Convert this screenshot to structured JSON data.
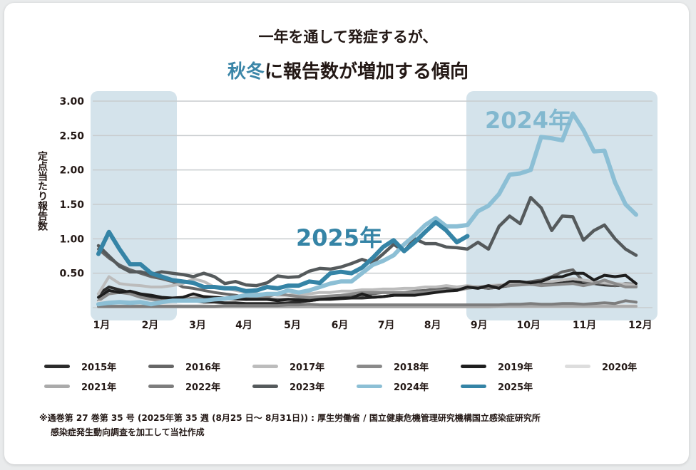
{
  "title": {
    "line1": "一年を通して発症するが、",
    "line2_accent": "秋冬",
    "line2_rest": "に報告数が増加する傾向"
  },
  "chart_data": {
    "type": "line",
    "ylabel": "定点当たり報告数",
    "ylim": [
      0,
      3.0
    ],
    "yticks": [
      "3.00",
      "2.50",
      "2.00",
      "1.50",
      "1.00",
      "0.50"
    ],
    "ytick_values": [
      3.0,
      2.5,
      2.0,
      1.5,
      1.0,
      0.5
    ],
    "x_tick_labels": [
      "1月",
      "2月",
      "3月",
      "4月",
      "5月",
      "6月",
      "7月",
      "8月",
      "9月",
      "10月",
      "11月",
      "12月"
    ],
    "grid": true,
    "legend_placement": "bottom",
    "shaded_periods": [
      "1月–2月",
      "9月–12月"
    ],
    "annotations": [
      {
        "text": "2024年",
        "series": "2024年"
      },
      {
        "text": "2025年",
        "series": "2025年"
      }
    ],
    "series": [
      {
        "name": "2015年",
        "color": "#2b2b2b",
        "values": [
          0.2,
          0.3,
          0.26,
          0.22,
          0.18,
          0.15,
          0.13,
          0.12,
          0.1,
          0.1,
          0.08,
          0.08,
          0.07,
          0.07,
          0.06,
          0.06,
          0.06,
          0.06,
          0.07,
          0.08,
          0.1,
          0.12,
          0.12,
          0.13,
          0.14,
          0.14,
          0.15,
          0.16,
          0.18,
          0.2,
          0.22,
          0.24,
          0.25,
          0.26,
          0.28,
          0.3,
          0.3,
          0.28,
          0.3,
          0.32,
          0.35,
          0.34,
          0.33,
          0.35,
          0.36,
          0.38,
          0.36,
          0.35,
          0.33,
          0.32,
          0.33,
          0.32
        ]
      },
      {
        "name": "2016年",
        "color": "#666666",
        "values": [
          0.85,
          0.72,
          0.62,
          0.55,
          0.5,
          0.45,
          0.42,
          0.38,
          0.3,
          0.28,
          0.25,
          0.22,
          0.2,
          0.18,
          0.15,
          0.14,
          0.13,
          0.12,
          0.12,
          0.12,
          0.13,
          0.14,
          0.15,
          0.15,
          0.16,
          0.18,
          0.2,
          0.22,
          0.22,
          0.22,
          0.24,
          0.25,
          0.27,
          0.28,
          0.3,
          0.3,
          0.3,
          0.28,
          0.3,
          0.32,
          0.35,
          0.38,
          0.4,
          0.45,
          0.52,
          0.55,
          0.38,
          0.36,
          0.35,
          0.32,
          0.35,
          0.34
        ]
      },
      {
        "name": "2017年",
        "color": "#bcbcbc",
        "values": [
          0.2,
          0.45,
          0.35,
          0.33,
          0.32,
          0.3,
          0.3,
          0.32,
          0.35,
          0.42,
          0.38,
          0.3,
          0.28,
          0.25,
          0.22,
          0.2,
          0.2,
          0.18,
          0.18,
          0.2,
          0.2,
          0.22,
          0.22,
          0.24,
          0.24,
          0.26,
          0.26,
          0.27,
          0.27,
          0.28,
          0.28,
          0.3,
          0.3,
          0.32,
          0.3,
          0.32,
          0.3,
          0.32,
          0.33,
          0.34,
          0.35,
          0.36,
          0.37,
          0.38,
          0.4,
          0.42,
          0.4,
          0.38,
          0.36,
          0.35,
          0.34,
          0.33
        ]
      },
      {
        "name": "2018年",
        "color": "#8a8a8a",
        "values": [
          0.1,
          0.2,
          0.22,
          0.2,
          0.15,
          0.12,
          0.1,
          0.1,
          0.12,
          0.14,
          0.15,
          0.15,
          0.13,
          0.12,
          0.12,
          0.14,
          0.16,
          0.2,
          0.18,
          0.16,
          0.15,
          0.16,
          0.17,
          0.18,
          0.2,
          0.22,
          0.22,
          0.22,
          0.22,
          0.22,
          0.22,
          0.22,
          0.24,
          0.25,
          0.25,
          0.28,
          0.3,
          0.3,
          0.32,
          0.32,
          0.33,
          0.34,
          0.32,
          0.33,
          0.34,
          0.35,
          0.32,
          0.35,
          0.4,
          0.35,
          0.3,
          0.3
        ]
      },
      {
        "name": "2019年",
        "color": "#1e1e1e",
        "values": [
          0.15,
          0.25,
          0.22,
          0.24,
          0.2,
          0.18,
          0.15,
          0.14,
          0.15,
          0.2,
          0.16,
          0.15,
          0.14,
          0.13,
          0.12,
          0.12,
          0.12,
          0.1,
          0.12,
          0.11,
          0.1,
          0.12,
          0.13,
          0.14,
          0.14,
          0.2,
          0.15,
          0.16,
          0.18,
          0.18,
          0.18,
          0.2,
          0.22,
          0.24,
          0.25,
          0.3,
          0.28,
          0.32,
          0.28,
          0.38,
          0.38,
          0.36,
          0.38,
          0.44,
          0.45,
          0.5,
          0.5,
          0.4,
          0.47,
          0.45,
          0.47,
          0.35
        ]
      },
      {
        "name": "2020年",
        "color": "#dddddd",
        "values": [
          0.08,
          0.08,
          0.07,
          0.06,
          0.05,
          0.05,
          0.04,
          0.04,
          0.03,
          0.03,
          0.03,
          0.02,
          0.02,
          0.02,
          0.02,
          0.02,
          0.02,
          0.02,
          0.02,
          0.02,
          0.02,
          0.02,
          0.02,
          0.02,
          0.02,
          0.02,
          0.02,
          0.02,
          0.02,
          0.02,
          0.02,
          0.02,
          0.02,
          0.02,
          0.02,
          0.02,
          0.02,
          0.02,
          0.02,
          0.02,
          0.02,
          0.02,
          0.02,
          0.02,
          0.03,
          0.03,
          0.03,
          0.03,
          0.03,
          0.03,
          0.03,
          0.03
        ]
      },
      {
        "name": "2021年",
        "color": "#aaaaaa",
        "values": [
          0.01,
          0.01,
          0.01,
          0.01,
          0.01,
          0.01,
          0.01,
          0.01,
          0.01,
          0.01,
          0.01,
          0.01,
          0.01,
          0.01,
          0.01,
          0.01,
          0.01,
          0.01,
          0.01,
          0.01,
          0.01,
          0.01,
          0.01,
          0.01,
          0.01,
          0.01,
          0.01,
          0.01,
          0.01,
          0.01,
          0.01,
          0.01,
          0.01,
          0.01,
          0.01,
          0.01,
          0.01,
          0.01,
          0.02,
          0.02,
          0.02,
          0.02,
          0.02,
          0.02,
          0.02,
          0.02,
          0.02,
          0.02,
          0.02,
          0.02,
          0.02,
          0.02
        ]
      },
      {
        "name": "2022年",
        "color": "#7d7d7d",
        "values": [
          0.02,
          0.02,
          0.02,
          0.02,
          0.02,
          0.02,
          0.02,
          0.02,
          0.02,
          0.02,
          0.02,
          0.02,
          0.03,
          0.03,
          0.03,
          0.03,
          0.03,
          0.03,
          0.04,
          0.04,
          0.05,
          0.04,
          0.04,
          0.04,
          0.04,
          0.04,
          0.04,
          0.04,
          0.04,
          0.04,
          0.04,
          0.04,
          0.04,
          0.04,
          0.04,
          0.04,
          0.04,
          0.04,
          0.04,
          0.05,
          0.05,
          0.06,
          0.05,
          0.05,
          0.06,
          0.06,
          0.05,
          0.06,
          0.07,
          0.06,
          0.1,
          0.08
        ]
      },
      {
        "name": "2023年",
        "color": "#555a5c",
        "values": [
          0.9,
          0.75,
          0.6,
          0.52,
          0.52,
          0.48,
          0.52,
          0.5,
          0.48,
          0.45,
          0.5,
          0.45,
          0.35,
          0.38,
          0.33,
          0.32,
          0.36,
          0.46,
          0.44,
          0.45,
          0.53,
          0.57,
          0.56,
          0.59,
          0.64,
          0.7,
          0.65,
          0.78,
          0.92,
          0.82,
          1.0,
          0.93,
          0.93,
          0.88,
          0.87,
          0.85,
          0.95,
          0.85,
          1.18,
          1.33,
          1.22,
          1.6,
          1.45,
          1.12,
          1.33,
          1.32,
          0.98,
          1.12,
          1.2,
          1.0,
          0.85,
          0.76
        ]
      },
      {
        "name": "2024年",
        "color": "#8cbfd5",
        "values": [
          0.05,
          0.07,
          0.08,
          0.07,
          0.08,
          0.05,
          0.08,
          0.1,
          0.1,
          0.1,
          0.1,
          0.12,
          0.13,
          0.15,
          0.18,
          0.18,
          0.2,
          0.2,
          0.25,
          0.22,
          0.25,
          0.3,
          0.35,
          0.38,
          0.38,
          0.5,
          0.62,
          0.68,
          0.76,
          0.92,
          1.05,
          1.2,
          1.3,
          1.18,
          1.18,
          1.2,
          1.4,
          1.48,
          1.65,
          1.93,
          1.95,
          2.0,
          2.48,
          2.46,
          2.43,
          2.82,
          2.58,
          2.27,
          2.28,
          1.82,
          1.5,
          1.35
        ]
      },
      {
        "name": "2025年",
        "color": "#3584a6",
        "values": [
          0.78,
          1.1,
          0.85,
          0.63,
          0.63,
          0.5,
          0.45,
          0.4,
          0.38,
          0.36,
          0.3,
          0.3,
          0.28,
          0.28,
          0.24,
          0.25,
          0.3,
          0.28,
          0.32,
          0.32,
          0.38,
          0.36,
          0.5,
          0.52,
          0.5,
          0.58,
          0.72,
          0.88,
          0.98,
          0.82,
          0.95,
          1.1,
          1.24,
          1.12,
          0.95,
          1.04
        ]
      }
    ]
  },
  "footnote": {
    "line1": "※通巻第 27 巻第 35 号 (2025年第 35 週 (8月25 日～ 8月31日)) : 厚生労働省 / 国立健康危機管理研究機構国立感染症研究所",
    "line2": "感染症発生動向調査を加工して当社作成"
  }
}
